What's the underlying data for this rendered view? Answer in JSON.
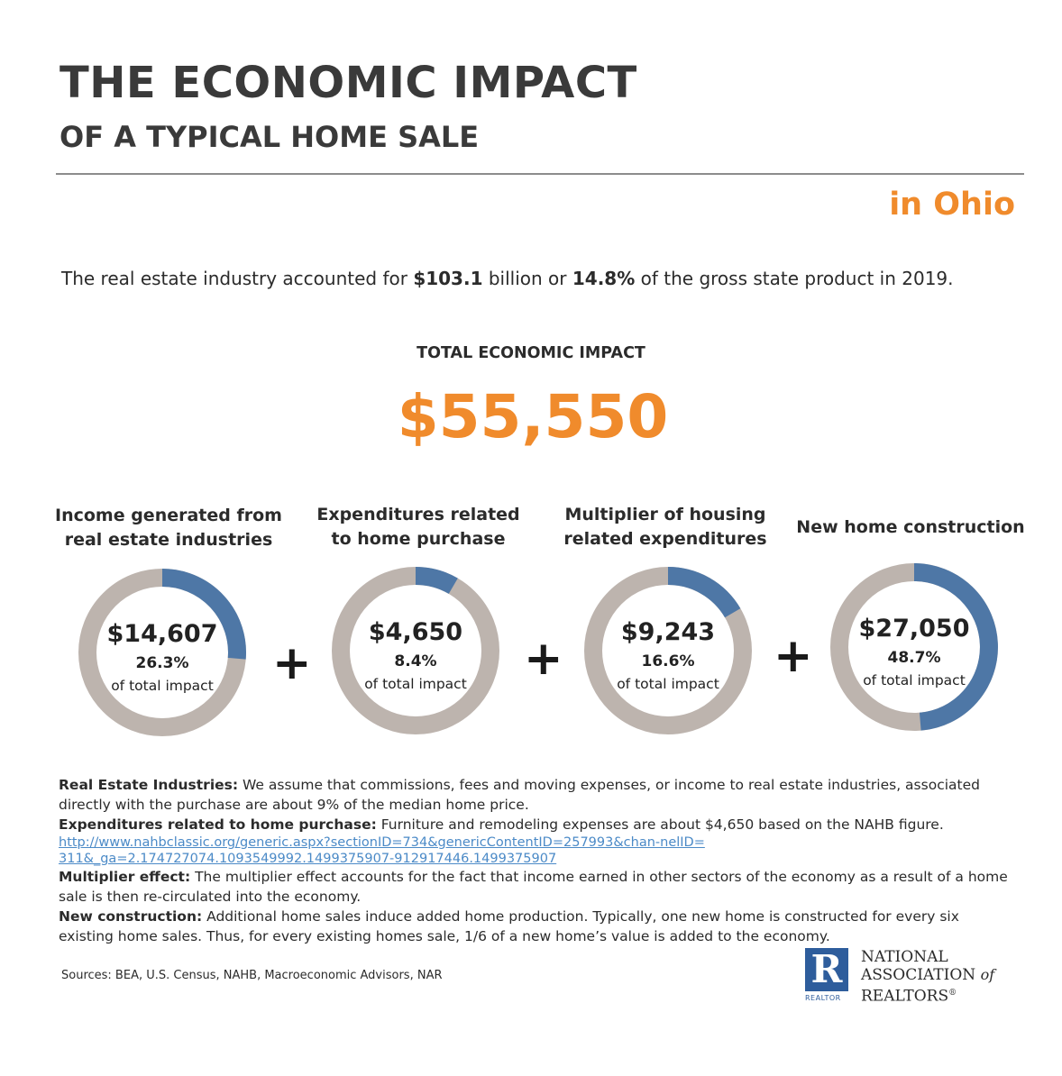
{
  "header": {
    "title": "THE ECONOMIC IMPACT",
    "subtitle": "OF A TYPICAL HOME SALE",
    "region": "in Ohio"
  },
  "intro": {
    "text1": "The real estate industry accounted for ",
    "amount": "$103.1",
    "text2": " billion or ",
    "percent": "14.8%",
    "text3": " of the gross state product in 2019."
  },
  "total": {
    "label": "TOTAL ECONOMIC IMPACT",
    "value": "$55,550"
  },
  "colors": {
    "accent": "#f08b2c",
    "donut_fill": "#4e77a6",
    "donut_track": "#bdb4ae"
  },
  "chart_data": {
    "type": "pie",
    "title": "TOTAL ECONOMIC IMPACT",
    "total": 55550,
    "unit": "$",
    "series": [
      {
        "name_lines": [
          "Income generated from",
          "real estate industries"
        ],
        "value_label": "$14,607",
        "value": 14607,
        "percent": 26.3,
        "percent_label": "26.3%",
        "caption": "of total impact"
      },
      {
        "name_lines": [
          "Expenditures related",
          "to home purchase"
        ],
        "value_label": "$4,650",
        "value": 4650,
        "percent": 8.4,
        "percent_label": "8.4%",
        "caption": "of total impact"
      },
      {
        "name_lines": [
          "Multiplier of housing",
          "related expenditures"
        ],
        "value_label": "$9,243",
        "value": 9243,
        "percent": 16.6,
        "percent_label": "16.6%",
        "caption": "of total impact"
      },
      {
        "name_lines": [
          "New home construction"
        ],
        "value_label": "$27,050",
        "value": 27050,
        "percent": 48.7,
        "percent_label": "48.7%",
        "caption": "of total impact"
      }
    ],
    "operator": "+"
  },
  "notes": [
    {
      "label": "Real Estate Industries:",
      "text": " We assume that commissions, fees and moving expenses, or income to real estate industries, associated directly with the purchase are about 9% of the median home price."
    },
    {
      "label": "Expenditures related to home purchase:",
      "text": " Furniture and remodeling expenses are about $4,650 based on the NAHB figure."
    },
    {
      "link": "http://www.nahbclassic.org/generic.aspx?sectionID=734&genericContentID=257993&chan-nelID=311&_ga=2.174727074.1093549992.1499375907-912917446.1499375907"
    },
    {
      "label": "Multiplier effect:",
      "text": " The multiplier effect accounts for the fact that income earned in other sectors of the economy as a result of a home sale is then re-circulated into the economy."
    },
    {
      "label": "New construction:",
      "text": " Additional home sales induce added home production. Typically, one new home is constructed for every six existing home sales. Thus, for every existing homes sale, 1/6 of a new home’s value is added to the economy."
    }
  ],
  "sources": "Sources: BEA, U.S. Census, NAHB, Macroeconomic Advisors, NAR",
  "logo": {
    "mark": "R",
    "tag": "REALTOR",
    "line1": "NATIONAL",
    "line2": "ASSOCIATION",
    "line2_suffix": "of",
    "line3": "REALTORS",
    "registered": "®"
  }
}
